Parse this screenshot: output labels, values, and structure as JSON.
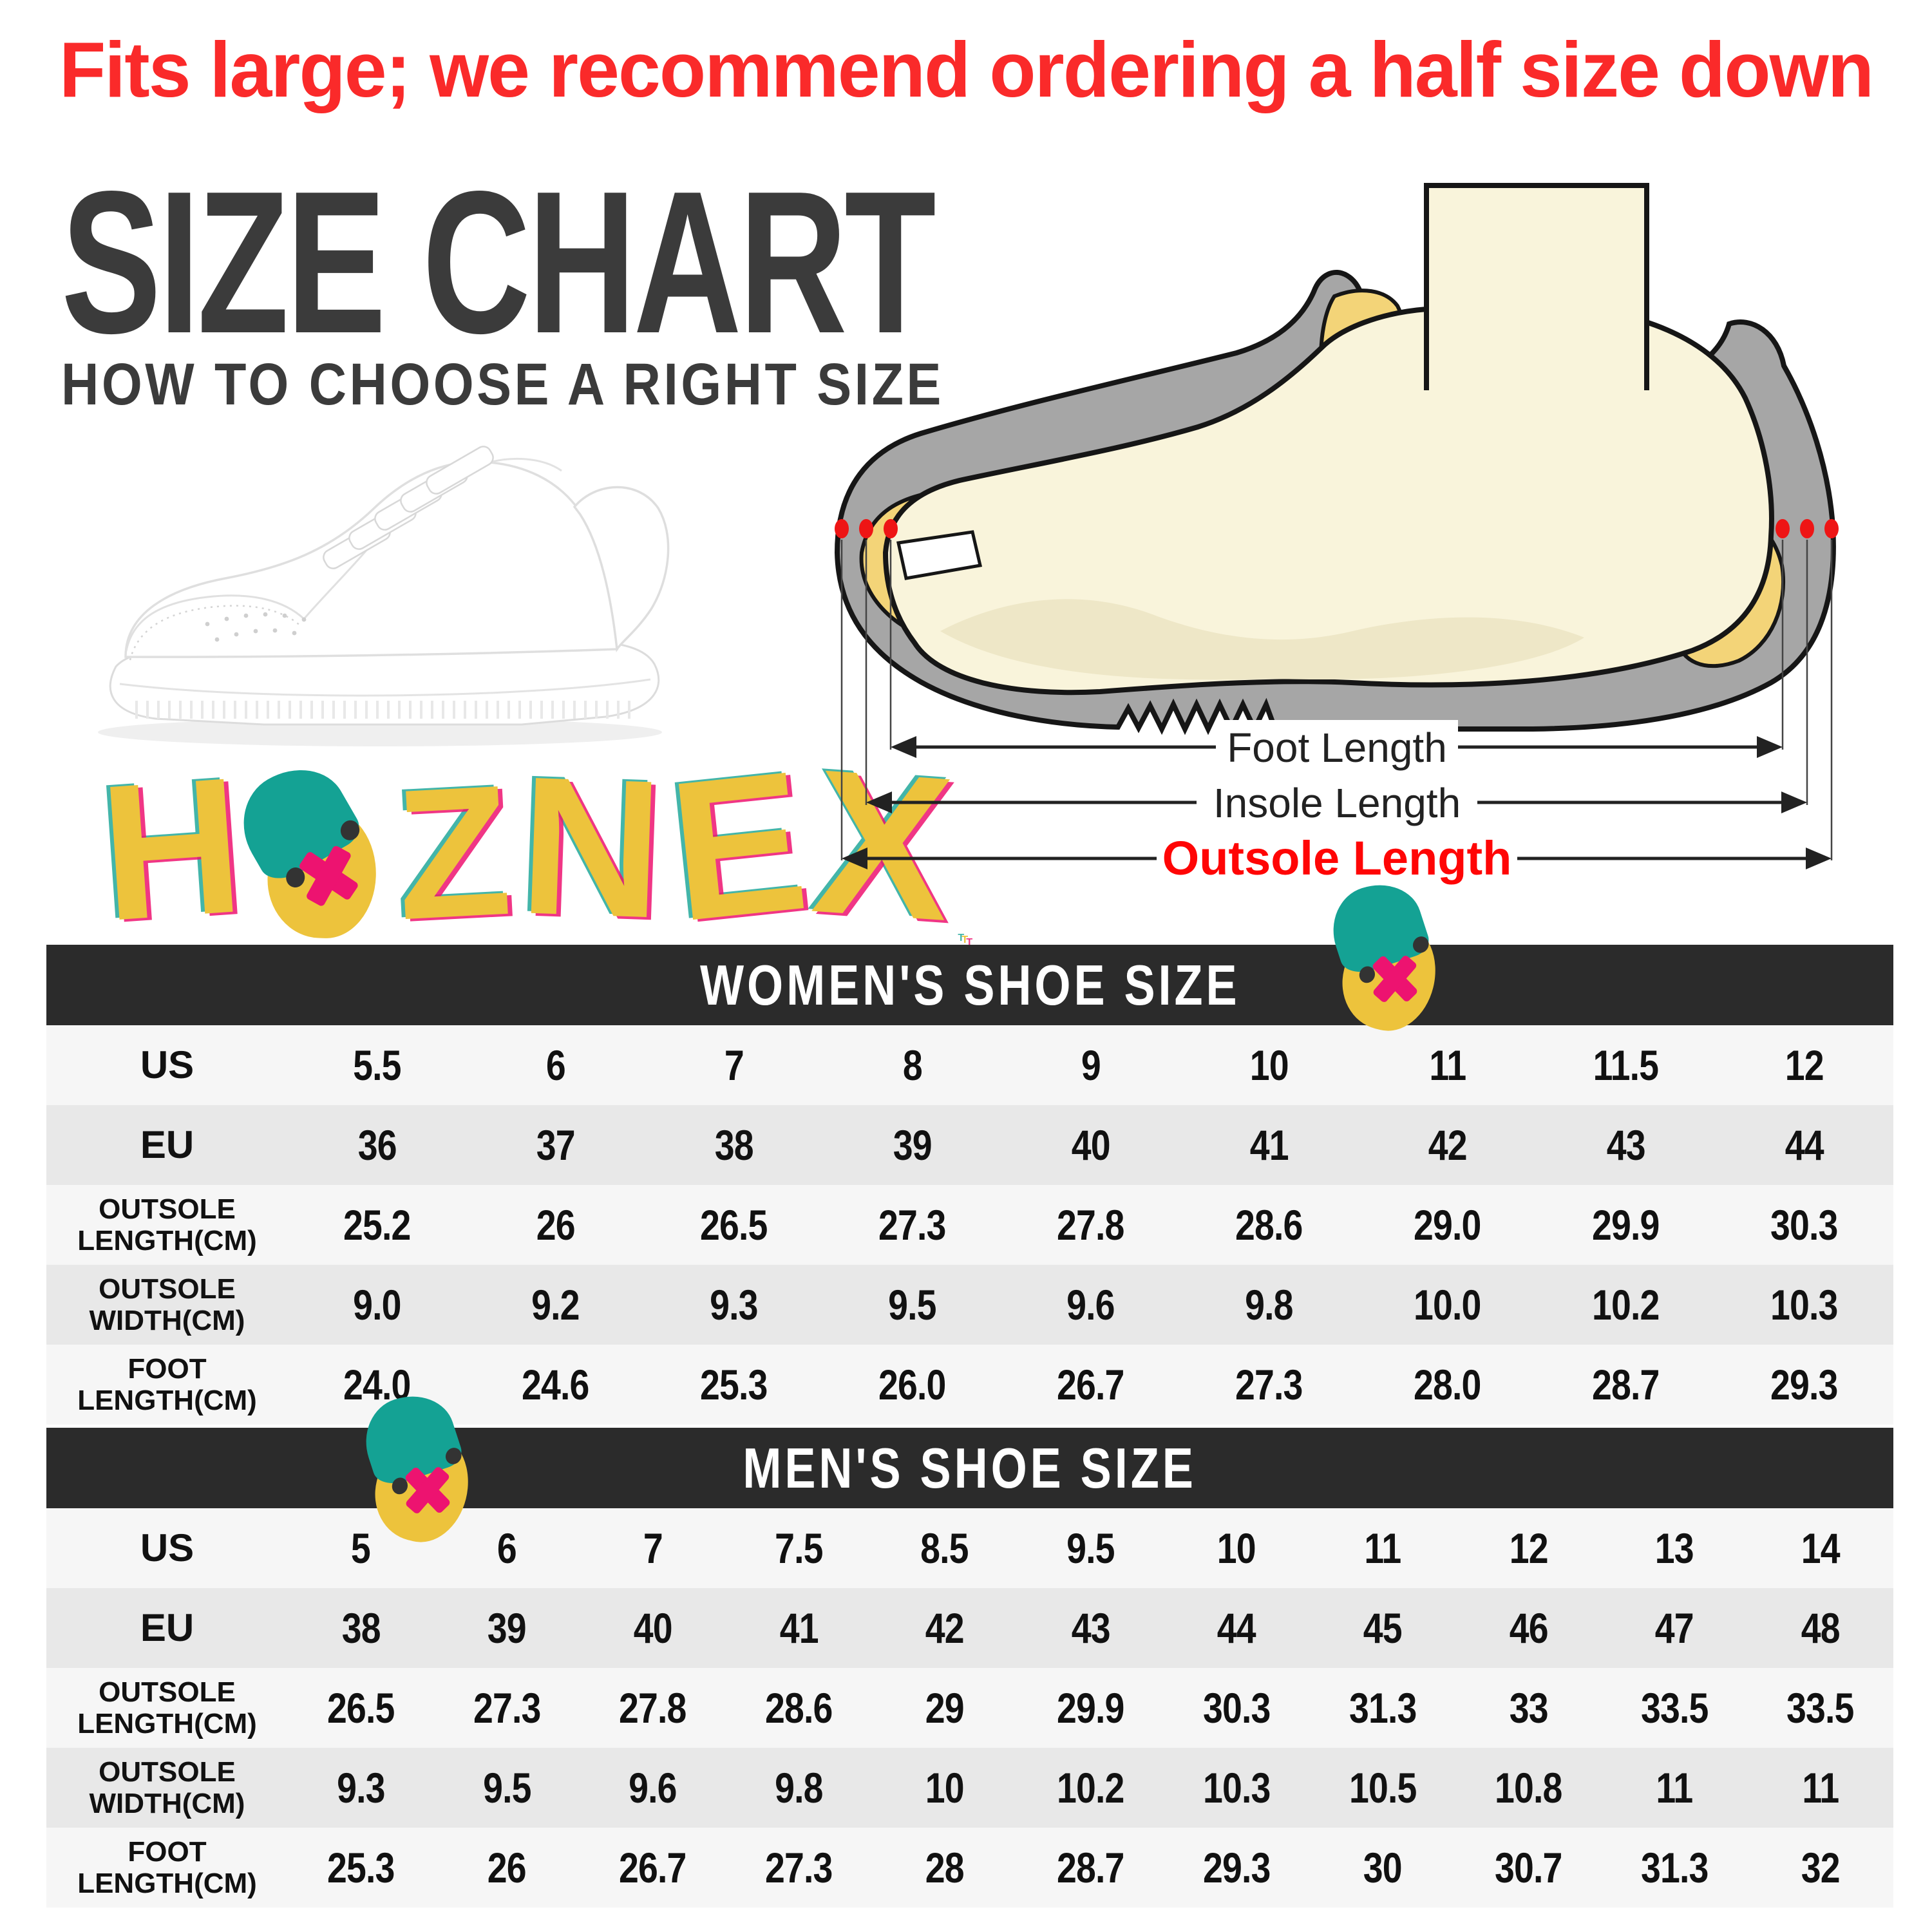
{
  "banner": {
    "text": "Fits large; we recommend ordering a half size down"
  },
  "heading": {
    "title": "SIZE CHART",
    "subtitle": "HOW TO CHOOSE A RIGHT SIZE"
  },
  "brand": {
    "letters": [
      "H",
      "Z",
      "N",
      "E",
      "X",
      "T"
    ],
    "mascot": "beanie-face-x-mouth"
  },
  "diagram": {
    "foot_label": "Foot Length",
    "insole_label": "Insole Length",
    "outsole_label": "Outsole Length"
  },
  "colors": {
    "banner_red": "#fa2a2a",
    "outsole_red": "#ff0505",
    "title_gray": "#3b3b3b",
    "bar_dark": "#2b2b2b",
    "stripe_gray": "#e8e8e8",
    "stripe_light": "#f6f6f6",
    "logo_yellow": "#edc33c",
    "logo_teal": "#14a294",
    "logo_pink": "#ed1370",
    "shoe_gray": "#a6a6a6",
    "foot_cream": "#f9f4db",
    "insole_yellow": "#f3d478"
  },
  "chart_data": [
    {
      "type": "table",
      "title": "WOMEN'S SHOE SIZE",
      "row_labels": [
        "US",
        "EU",
        "OUTSOLE LENGTH(CM)",
        "OUTSOLE WIDTH(CM)",
        "FOOT LENGTH(CM)"
      ],
      "rows": [
        [
          "5.5",
          "6",
          "7",
          "8",
          "9",
          "10",
          "11",
          "11.5",
          "12"
        ],
        [
          "36",
          "37",
          "38",
          "39",
          "40",
          "41",
          "42",
          "43",
          "44"
        ],
        [
          "25.2",
          "26",
          "26.5",
          "27.3",
          "27.8",
          "28.6",
          "29.0",
          "29.9",
          "30.3"
        ],
        [
          "9.0",
          "9.2",
          "9.3",
          "9.5",
          "9.6",
          "9.8",
          "10.0",
          "10.2",
          "10.3"
        ],
        [
          "24.0",
          "24.6",
          "25.3",
          "26.0",
          "26.7",
          "27.3",
          "28.0",
          "28.7",
          "29.3"
        ]
      ]
    },
    {
      "type": "table",
      "title": "MEN'S SHOE SIZE",
      "row_labels": [
        "US",
        "EU",
        "OUTSOLE LENGTH(CM)",
        "OUTSOLE WIDTH(CM)",
        "FOOT LENGTH(CM)"
      ],
      "rows": [
        [
          "5",
          "6",
          "7",
          "7.5",
          "8.5",
          "9.5",
          "10",
          "11",
          "12",
          "13",
          "14"
        ],
        [
          "38",
          "39",
          "40",
          "41",
          "42",
          "43",
          "44",
          "45",
          "46",
          "47",
          "48"
        ],
        [
          "26.5",
          "27.3",
          "27.8",
          "28.6",
          "29",
          "29.9",
          "30.3",
          "31.3",
          "33",
          "33.5",
          "33.5"
        ],
        [
          "9.3",
          "9.5",
          "9.6",
          "9.8",
          "10",
          "10.2",
          "10.3",
          "10.5",
          "10.8",
          "11",
          "11"
        ],
        [
          "25.3",
          "26",
          "26.7",
          "27.3",
          "28",
          "28.7",
          "29.3",
          "30",
          "30.7",
          "31.3",
          "32"
        ]
      ]
    }
  ]
}
